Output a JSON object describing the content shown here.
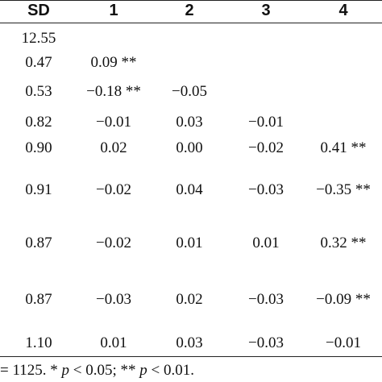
{
  "table": {
    "headers": [
      "SD",
      "1",
      "2",
      "3",
      "4"
    ],
    "rows": [
      {
        "sd": "12.55",
        "c1": "",
        "c2": "",
        "c3": "",
        "c4": ""
      },
      {
        "sd": "0.47",
        "c1": "0.09 **",
        "c2": "",
        "c3": "",
        "c4": ""
      },
      {
        "sd": "0.53",
        "c1": "−0.18 **",
        "c2": "−0.05",
        "c3": "",
        "c4": ""
      },
      {
        "sd": "0.82",
        "c1": "−0.01",
        "c2": "0.03",
        "c3": "−0.01",
        "c4": ""
      },
      {
        "sd": "0.90",
        "c1": "0.02",
        "c2": "0.00",
        "c3": "−0.02",
        "c4": "0.41 **"
      },
      {
        "sd": "0.91",
        "c1": "−0.02",
        "c2": "0.04",
        "c3": "−0.03",
        "c4": "−0.35 **"
      },
      {
        "sd": "0.87",
        "c1": "−0.02",
        "c2": "0.01",
        "c3": "0.01",
        "c4": "0.32 **"
      },
      {
        "sd": "0.87",
        "c1": "−0.03",
        "c2": "0.02",
        "c3": "−0.03",
        "c4": "−0.09 **"
      },
      {
        "sd": "1.10",
        "c1": "0.01",
        "c2": "0.03",
        "c3": "−0.03",
        "c4": "−0.01"
      }
    ]
  },
  "footnote": {
    "prefix": "= 1125. * ",
    "p1": "p",
    "mid": " < 0.05; ** ",
    "p2": "p",
    "suffix": " < 0.01."
  }
}
